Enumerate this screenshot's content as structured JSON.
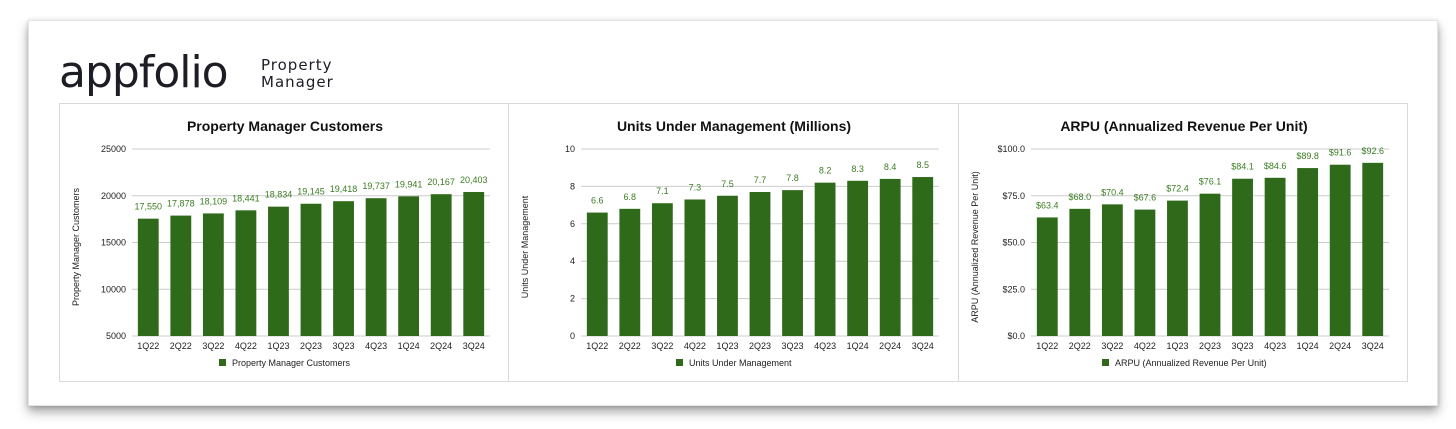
{
  "logo": {
    "word": "appfolio",
    "sub_line1": "Property",
    "sub_line2": "Manager"
  },
  "colors": {
    "bar": "#2e6a1a",
    "label": "#3a7d22",
    "grid": "#cccccc"
  },
  "charts": [
    {
      "title": "Property Manager Customers",
      "ylabel": "Property Manager Customers",
      "legend": "Property Manager Customers",
      "yticks": [
        "25000",
        "20000",
        "15000",
        "10000",
        "5000"
      ]
    },
    {
      "title": "Units Under Management (Millions)",
      "ylabel": "Units Under Management",
      "legend": "Units Under Management",
      "yticks": [
        "10",
        "8",
        "6",
        "4",
        "2",
        "0"
      ]
    },
    {
      "title": "ARPU (Annualized Revenue Per Unit)",
      "ylabel": "ARPU (Annualized Revenue Per Unit)",
      "legend": "ARPU (Annualized Revenue Per Unit)",
      "yticks": [
        "$100.0",
        "$75.0",
        "$50.0",
        "$25.0",
        "$0.0"
      ]
    }
  ],
  "chart_data": [
    {
      "type": "bar",
      "title": "Property Manager Customers",
      "xlabel": "",
      "ylabel": "Property Manager Customers",
      "categories": [
        "1Q22",
        "2Q22",
        "3Q22",
        "4Q22",
        "1Q23",
        "2Q23",
        "3Q23",
        "4Q23",
        "1Q24",
        "2Q24",
        "3Q24"
      ],
      "series": [
        {
          "name": "Property Manager Customers",
          "values": [
            17550,
            17878,
            18109,
            18441,
            18834,
            19145,
            19418,
            19737,
            19941,
            20167,
            20403
          ]
        }
      ],
      "data_labels": [
        "17,550",
        "17,878",
        "18,109",
        "18,441",
        "18,834",
        "19,145",
        "19,418",
        "19,737",
        "19,941",
        "20,167",
        "20,403"
      ],
      "ylim": [
        5000,
        25000
      ],
      "grid": true,
      "legend_position": "bottom"
    },
    {
      "type": "bar",
      "title": "Units Under Management (Millions)",
      "xlabel": "",
      "ylabel": "Units Under Management",
      "categories": [
        "1Q22",
        "2Q22",
        "3Q22",
        "4Q22",
        "1Q23",
        "2Q23",
        "3Q23",
        "4Q23",
        "1Q24",
        "2Q24",
        "3Q24"
      ],
      "series": [
        {
          "name": "Units Under Management",
          "values": [
            6.6,
            6.8,
            7.1,
            7.3,
            7.5,
            7.7,
            7.8,
            8.2,
            8.3,
            8.4,
            8.5
          ]
        }
      ],
      "data_labels": [
        "6.6",
        "6.8",
        "7.1",
        "7.3",
        "7.5",
        "7.7",
        "7.8",
        "8.2",
        "8.3",
        "8.4",
        "8.5"
      ],
      "ylim": [
        0,
        10
      ],
      "grid": true,
      "legend_position": "bottom"
    },
    {
      "type": "bar",
      "title": "ARPU (Annualized Revenue Per Unit)",
      "xlabel": "",
      "ylabel": "ARPU (Annualized Revenue Per Unit)",
      "categories": [
        "1Q22",
        "2Q22",
        "3Q22",
        "4Q22",
        "1Q23",
        "2Q23",
        "3Q23",
        "4Q23",
        "1Q24",
        "2Q24",
        "3Q24"
      ],
      "series": [
        {
          "name": "ARPU (Annualized Revenue Per Unit)",
          "values": [
            63.4,
            68.0,
            70.4,
            67.6,
            72.4,
            76.1,
            84.1,
            84.6,
            89.8,
            91.6,
            92.6
          ]
        }
      ],
      "data_labels": [
        "$63.4",
        "$68.0",
        "$70.4",
        "$67.6",
        "$72.4",
        "$76.1",
        "$84.1",
        "$84.6",
        "$89.8",
        "$91.6",
        "$92.6"
      ],
      "ylim": [
        0,
        100
      ],
      "grid": true,
      "legend_position": "bottom"
    }
  ]
}
